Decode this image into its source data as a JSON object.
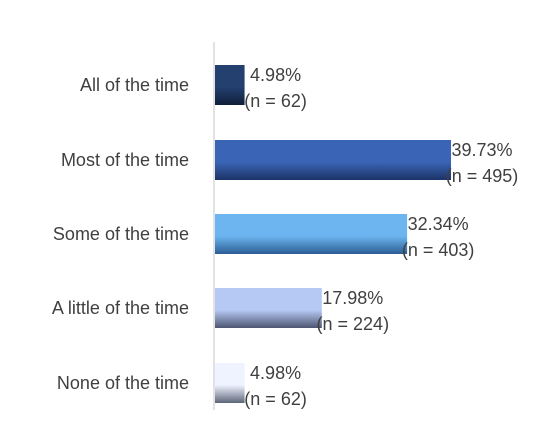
{
  "chart_data": {
    "type": "bar",
    "orientation": "horizontal",
    "title": "",
    "xlabel": "",
    "ylabel": "",
    "grid": false,
    "legend": "none",
    "categories": [
      "All of the time",
      "Most of the time",
      "Some of the time",
      "A little of the time",
      "None of the time"
    ],
    "values": [
      4.98,
      39.73,
      32.34,
      17.98,
      4.98
    ],
    "counts": [
      62,
      495,
      403,
      224,
      62
    ],
    "value_labels": [
      "4.98%",
      "39.73%",
      "32.34%",
      "17.98%",
      "4.98%"
    ],
    "count_labels": [
      "(n = 62)",
      "(n = 495)",
      "(n = 403)",
      "(n = 224)",
      "(n = 62)"
    ],
    "xlim": [
      0,
      50
    ],
    "colors": [
      {
        "top": "#24406f",
        "bottom": "#0f1f3a"
      },
      {
        "top": "#3a64b5",
        "bottom": "#1c3366"
      },
      {
        "top": "#6cb5f0",
        "bottom": "#2b5e94"
      },
      {
        "top": "#b6c9f4",
        "bottom": "#4c5570"
      },
      {
        "top": "#eef3ff",
        "bottom": "#5d6678"
      }
    ],
    "axis_color": "#d9d9d9"
  }
}
